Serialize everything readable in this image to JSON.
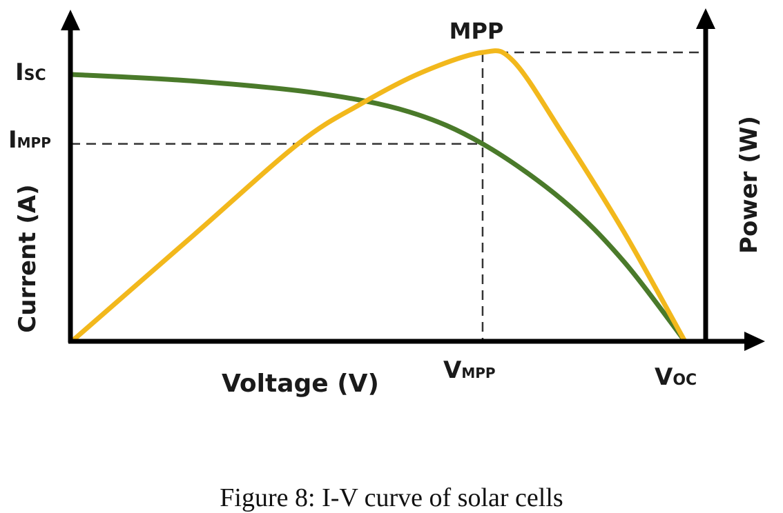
{
  "chart_data": {
    "type": "line",
    "xlabel": "Voltage (V)",
    "ylabel_left": "Current (A)",
    "ylabel_right": "Power (W)",
    "annotations": {
      "mpp": "MPP",
      "isc": {
        "main": "I",
        "sub": "SC"
      },
      "impp": {
        "main": "I",
        "sub": "MPP"
      },
      "vmpp": {
        "main": "V",
        "sub": "MPP"
      },
      "voc": {
        "main": "V",
        "sub": "OC"
      }
    },
    "key_points": {
      "Voc": 1,
      "Vmpp": 0.67,
      "Isc": 1,
      "Impp": 0.74,
      "Pmax": 1
    },
    "series": [
      {
        "id": "current",
        "color": "#4a7a2a",
        "points": [
          [
            0,
            1
          ],
          [
            0.2,
            0.975
          ],
          [
            0.4,
            0.93
          ],
          [
            0.55,
            0.86
          ],
          [
            0.67,
            0.74
          ],
          [
            0.8,
            0.53
          ],
          [
            0.9,
            0.3
          ],
          [
            1,
            0
          ]
        ]
      },
      {
        "id": "power",
        "color": "#f2b81c",
        "points": [
          [
            0,
            0
          ],
          [
            0.2,
            0.37
          ],
          [
            0.37,
            0.685
          ],
          [
            0.47,
            0.82
          ],
          [
            0.57,
            0.93
          ],
          [
            0.67,
            1
          ],
          [
            0.72,
            0.97
          ],
          [
            0.8,
            0.72
          ],
          [
            0.9,
            0.38
          ],
          [
            1,
            0
          ]
        ]
      }
    ],
    "grid": false
  },
  "caption": "Figure 8: I-V curve of solar cells"
}
